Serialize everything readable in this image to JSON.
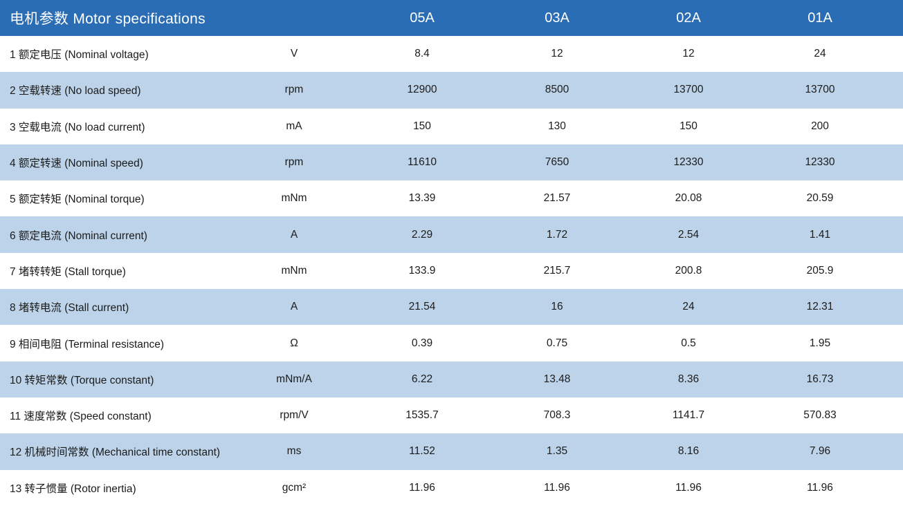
{
  "colors": {
    "header_bg": "#2A6DB5",
    "stripe_bg": "#BDD3E9",
    "text": "#1B1B1B",
    "header_text": "#FFFFFF"
  },
  "table": {
    "title": "电机参数 Motor specifications",
    "model_columns": [
      "05A",
      "03A",
      "02A",
      "01A"
    ],
    "rows": [
      {
        "label": "1 额定电压 (Nominal voltage)",
        "unit": "V",
        "values": [
          "8.4",
          "12",
          "12",
          "24"
        ]
      },
      {
        "label": "2 空载转速 (No load speed)",
        "unit": "rpm",
        "values": [
          "12900",
          "8500",
          "13700",
          "13700"
        ]
      },
      {
        "label": "3 空载电流 (No load current)",
        "unit": "mA",
        "values": [
          "150",
          "130",
          "150",
          "200"
        ]
      },
      {
        "label": "4 额定转速 (Nominal speed)",
        "unit": "rpm",
        "values": [
          "11610",
          "7650",
          "12330",
          "12330"
        ]
      },
      {
        "label": "5 额定转矩 (Nominal torque)",
        "unit": "mNm",
        "values": [
          "13.39",
          "21.57",
          "20.08",
          "20.59"
        ]
      },
      {
        "label": "6 额定电流 (Nominal current)",
        "unit": "A",
        "values": [
          "2.29",
          "1.72",
          "2.54",
          "1.41"
        ]
      },
      {
        "label": "7 堵转转矩 (Stall torque)",
        "unit": "mNm",
        "values": [
          "133.9",
          "215.7",
          "200.8",
          "205.9"
        ]
      },
      {
        "label": "8 堵转电流 (Stall current)",
        "unit": "A",
        "values": [
          "21.54",
          "16",
          "24",
          "12.31"
        ]
      },
      {
        "label": "9 相间电阻 (Terminal resistance)",
        "unit": "Ω",
        "values": [
          "0.39",
          "0.75",
          "0.5",
          "1.95"
        ]
      },
      {
        "label": "10 转矩常数 (Torque constant)",
        "unit": "mNm/A",
        "values": [
          "6.22",
          "13.48",
          "8.36",
          "16.73"
        ]
      },
      {
        "label": "11 速度常数 (Speed constant)",
        "unit": "rpm/V",
        "values": [
          "1535.7",
          "708.3",
          "1141.7",
          "570.83"
        ]
      },
      {
        "label": "12 机械时间常数 (Mechanical time constant)",
        "unit": "ms",
        "values": [
          "11.52",
          "1.35",
          "8.16",
          "7.96"
        ]
      },
      {
        "label": "13 转子惯量 (Rotor inertia)",
        "unit": "gcm²",
        "values": [
          "11.96",
          "11.96",
          "11.96",
          "11.96"
        ]
      }
    ]
  }
}
